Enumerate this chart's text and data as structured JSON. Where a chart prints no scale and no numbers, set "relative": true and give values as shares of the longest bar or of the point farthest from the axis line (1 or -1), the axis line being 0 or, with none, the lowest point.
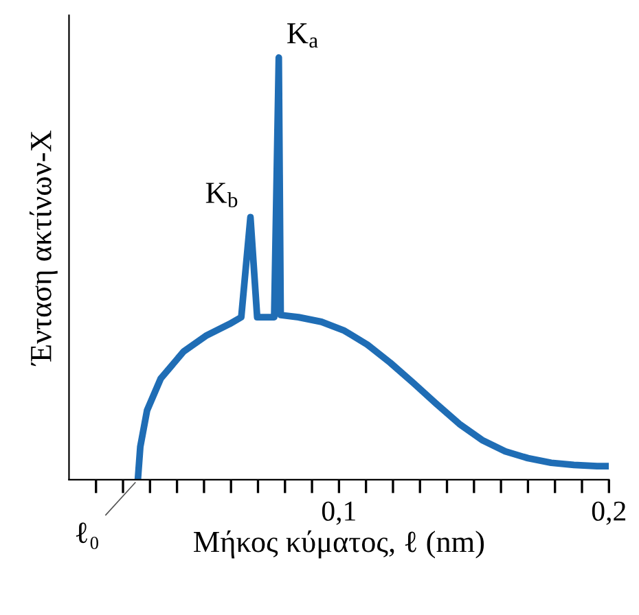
{
  "chart_data": {
    "type": "line",
    "xlabel": "Μήκος κύματος, ℓ (nm)",
    "ylabel": "Ένταση ακτίνων-X",
    "relative": true,
    "tick_labels": "x",
    "grid": false,
    "legend": false,
    "marker": "none",
    "line_style": "solid",
    "xlim": [
      0,
      0.2
    ],
    "xticks": [
      {
        "value": 0.01,
        "label": null
      },
      {
        "value": 0.02,
        "label": null
      },
      {
        "value": 0.03,
        "label": null
      },
      {
        "value": 0.04,
        "label": null
      },
      {
        "value": 0.05,
        "label": null
      },
      {
        "value": 0.06,
        "label": null
      },
      {
        "value": 0.07,
        "label": null
      },
      {
        "value": 0.08,
        "label": null
      },
      {
        "value": 0.09,
        "label": null
      },
      {
        "value": 0.1,
        "label": "0,1"
      },
      {
        "value": 0.11,
        "label": null
      },
      {
        "value": 0.12,
        "label": null
      },
      {
        "value": 0.13,
        "label": null
      },
      {
        "value": 0.14,
        "label": null
      },
      {
        "value": 0.15,
        "label": null
      },
      {
        "value": 0.16,
        "label": null
      },
      {
        "value": 0.17,
        "label": null
      },
      {
        "value": 0.18,
        "label": null
      },
      {
        "value": 0.19,
        "label": null
      },
      {
        "value": 0.2,
        "label": "0,2"
      }
    ],
    "series": [
      {
        "color": "#1f6db5",
        "x": [
          0.0255,
          0.0264,
          0.0289,
          0.034,
          0.0425,
          0.051,
          0.0595,
          0.0638,
          0.0672,
          0.0697,
          0.0731,
          0.076,
          0.0777,
          0.0784,
          0.085,
          0.0935,
          0.102,
          0.1105,
          0.119,
          0.1276,
          0.136,
          0.1446,
          0.153,
          0.1616,
          0.17,
          0.1786,
          0.187,
          0.1956,
          0.2
        ],
        "values": [
          0,
          0.078,
          0.164,
          0.24,
          0.304,
          0.342,
          0.369,
          0.385,
          0.622,
          0.385,
          0.385,
          0.385,
          1.0,
          0.39,
          0.385,
          0.374,
          0.353,
          0.32,
          0.277,
          0.229,
          0.18,
          0.132,
          0.094,
          0.067,
          0.051,
          0.04,
          0.035,
          0.032,
          0.032
        ]
      }
    ],
    "annotations": [
      {
        "text": "K$_{a}$",
        "x": 0.0777,
        "y": 1.0
      },
      {
        "text": "K$_{b}$",
        "x": 0.0672,
        "y": 0.622
      },
      {
        "text": "ℓ₀",
        "x": 0.0255,
        "y": 0
      }
    ]
  }
}
